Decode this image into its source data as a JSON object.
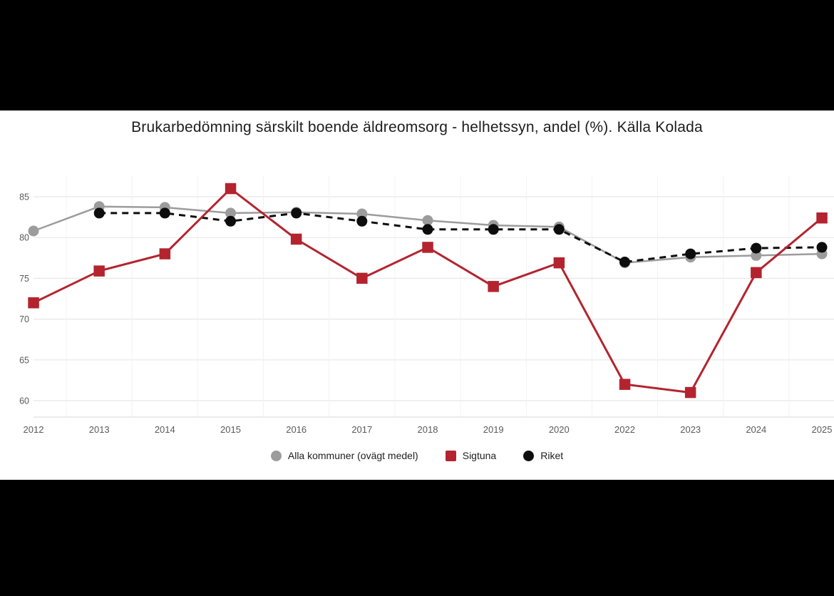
{
  "title": "Brukarbedömning särskilt boende äldreomsorg - helhetssyn, andel (%). Källa Kolada",
  "colors": {
    "page_background": "#000000",
    "panel_background": "#ffffff",
    "gridline": "#e7e7e7",
    "column_separator": "#f2f2f2",
    "baseline": "#e0e0e0",
    "axis_text": "#5a5a5a",
    "title_text": "#1d1d1d",
    "alla_kommuner": "#9c9c9c",
    "sigtuna": "#b3242f",
    "riket": "#0d0d0d"
  },
  "legend": {
    "items": [
      {
        "label": "Alla kommuner (ovägt medel)",
        "marker": "circle",
        "color": "#9c9c9c"
      },
      {
        "label": "Sigtuna",
        "marker": "square",
        "color": "#b3242f"
      },
      {
        "label": "Riket",
        "marker": "circle",
        "color": "#0d0d0d"
      }
    ]
  },
  "chart_data": {
    "type": "line",
    "title": "Brukarbedömning särskilt boende äldreomsorg - helhetssyn, andel (%). Källa Kolada",
    "categories": [
      "2012",
      "2013",
      "2014",
      "2015",
      "2016",
      "2017",
      "2018",
      "2019",
      "2020",
      "2022",
      "2023",
      "2024",
      "2025"
    ],
    "yticks": [
      60,
      65,
      70,
      75,
      80,
      85
    ],
    "ylim": [
      58.5,
      87.5
    ],
    "grid": "horizontal",
    "legend_position": "bottom",
    "series": [
      {
        "name": "Alla kommuner (ovägt medel)",
        "color": "#9c9c9c",
        "marker": "circle",
        "line_style": "solid",
        "values": [
          80.8,
          83.8,
          83.7,
          83.0,
          83.1,
          82.9,
          82.1,
          81.5,
          81.3,
          76.9,
          77.6,
          77.8,
          78.0
        ]
      },
      {
        "name": "Sigtuna",
        "color": "#b3242f",
        "marker": "square",
        "line_style": "solid",
        "values": [
          72.0,
          75.9,
          78.0,
          86.0,
          79.8,
          75.0,
          78.8,
          74.0,
          76.9,
          62.0,
          61.0,
          75.7,
          82.4
        ]
      },
      {
        "name": "Riket",
        "color": "#0d0d0d",
        "marker": "circle",
        "line_style": "dashed",
        "values": [
          null,
          83,
          83,
          82,
          83,
          82,
          81,
          81,
          81,
          77,
          78,
          78.7,
          78.8
        ]
      }
    ]
  }
}
